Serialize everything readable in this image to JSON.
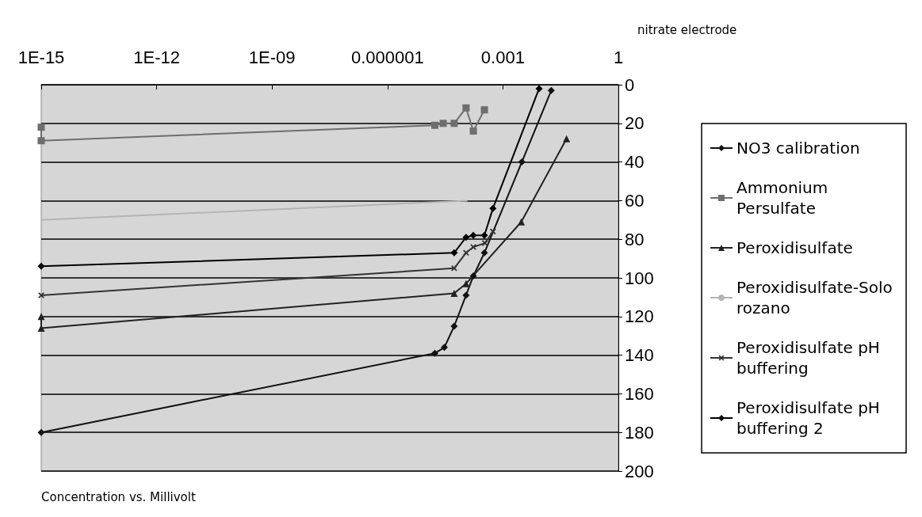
{
  "chart_data": {
    "type": "line",
    "annotations": [
      "nitrate electrode",
      "Concentration vs. Millivolt"
    ],
    "log": "x",
    "grid": "y",
    "legend": "right",
    "xlim": [
      1e-15,
      1
    ],
    "xticks": [
      {
        "value": 1e-15,
        "label": "1E-15"
      },
      {
        "value": 1e-12,
        "label": "1E-12"
      },
      {
        "value": 1e-09,
        "label": "1E-09"
      },
      {
        "value": 1e-06,
        "label": "0.000001"
      },
      0.001,
      1
    ],
    "ylim": [
      200,
      0
    ],
    "yticks": [
      0,
      20,
      40,
      60,
      80,
      100,
      120,
      140,
      160,
      180,
      200
    ],
    "series": [
      {
        "name": "NO3 calibration",
        "color": "#111111",
        "marker": "diamond",
        "x": [
          1e-15,
          1.7e-05,
          3e-05,
          5.4e-05,
          0.00011,
          0.00017,
          0.00033,
          0.0031,
          0.018
        ],
        "values": [
          180,
          139,
          136,
          125,
          109,
          99,
          87,
          40,
          3
        ]
      },
      {
        "name": "Ammonium Persulfate",
        "color": "#6e6e6e",
        "marker": "square",
        "x": [
          1e-15,
          1e-15,
          1.7e-05,
          2.8e-05,
          5.4e-05,
          0.00011,
          0.00017,
          0.00033
        ],
        "values": [
          22,
          29,
          21,
          20,
          20,
          12,
          24,
          13
        ]
      },
      {
        "name": "Peroxidisulfate",
        "color": "#222222",
        "marker": "triangle",
        "x": [
          1e-15,
          1e-15,
          5.4e-05,
          0.00011,
          0.003,
          0.045
        ],
        "values": [
          120,
          126,
          108,
          103,
          71,
          28
        ]
      },
      {
        "name": "Peroxidisulfate-Solorozano",
        "color": "#b4b4b4",
        "marker": "none",
        "x": [
          1e-15,
          0.00012
        ],
        "values": [
          70,
          60
        ]
      },
      {
        "name": "Peroxidisulfate pH buffering",
        "color": "#333333",
        "marker": "cross",
        "x": [
          1e-15,
          5.4e-05,
          0.00011,
          0.00017,
          0.00034,
          0.00055
        ],
        "values": [
          109,
          95,
          87,
          84,
          82,
          76
        ]
      },
      {
        "name": "Peroxidisulfate pH buffering 2",
        "color": "#000000",
        "marker": "diamond",
        "x": [
          1e-15,
          5.4e-05,
          0.00011,
          0.00017,
          0.00033,
          0.00055,
          0.0087
        ],
        "values": [
          94,
          87,
          79,
          78,
          78,
          64,
          2
        ]
      }
    ]
  }
}
